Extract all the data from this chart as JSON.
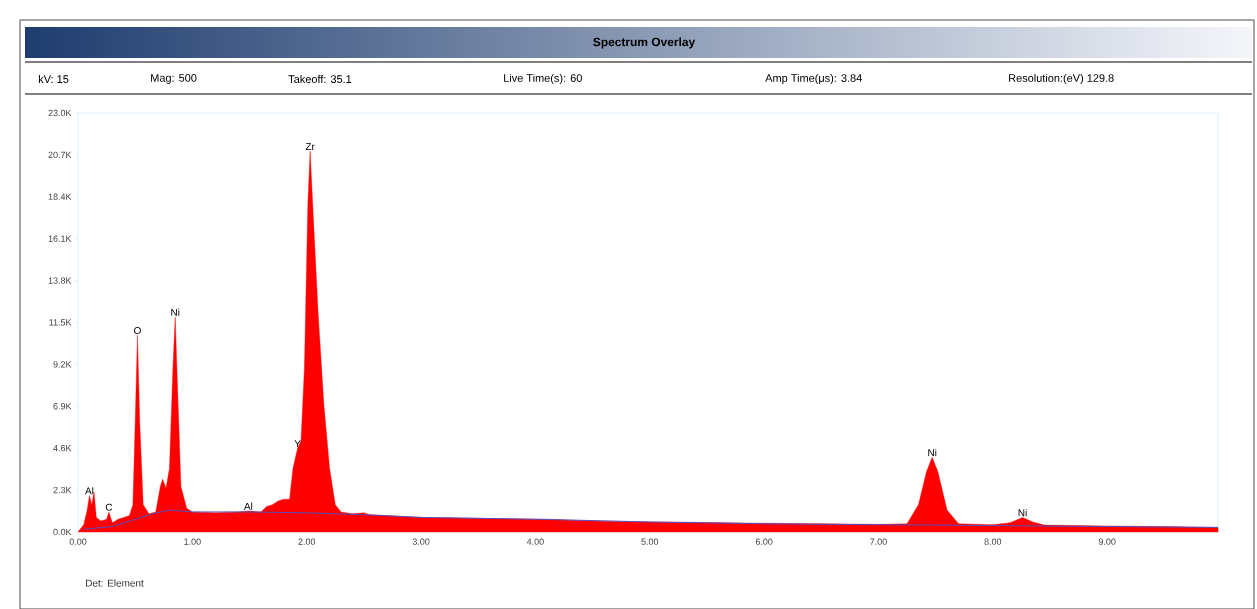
{
  "chart_data": {
    "type": "area",
    "title": "Spectrum Overlay",
    "xlim": [
      0,
      9.97
    ],
    "ylim": [
      0,
      23000
    ],
    "xticks": [
      {
        "value": 0,
        "label": "0.00"
      },
      {
        "value": 1,
        "label": "1.00"
      },
      {
        "value": 2,
        "label": "2.00"
      },
      {
        "value": 3,
        "label": "3.00"
      },
      {
        "value": 4,
        "label": "4.00"
      },
      {
        "value": 5,
        "label": "5.00"
      },
      {
        "value": 6,
        "label": "6.00"
      },
      {
        "value": 7,
        "label": "7.00"
      },
      {
        "value": 8,
        "label": "8.00"
      },
      {
        "value": 9,
        "label": "9.00"
      }
    ],
    "yticks": [
      {
        "value": 0,
        "label": "0.0K"
      },
      {
        "value": 2300,
        "label": "2.3K"
      },
      {
        "value": 4600,
        "label": "4.6K"
      },
      {
        "value": 6900,
        "label": "6.9K"
      },
      {
        "value": 9200,
        "label": "9.2K"
      },
      {
        "value": 11500,
        "label": "11.5K"
      },
      {
        "value": 13800,
        "label": "13.8K"
      },
      {
        "value": 16100,
        "label": "16.1K"
      },
      {
        "value": 18400,
        "label": "18.4K"
      },
      {
        "value": 20700,
        "label": "20.7K"
      },
      {
        "value": 23000,
        "label": "23.0K"
      }
    ],
    "series": [
      {
        "color": "#ff0000",
        "x": [
          0.0,
          0.05,
          0.08,
          0.1,
          0.12,
          0.14,
          0.16,
          0.2,
          0.25,
          0.27,
          0.3,
          0.35,
          0.4,
          0.45,
          0.48,
          0.5,
          0.52,
          0.54,
          0.57,
          0.62,
          0.68,
          0.72,
          0.74,
          0.77,
          0.8,
          0.83,
          0.85,
          0.87,
          0.9,
          0.95,
          1.0,
          1.2,
          1.4,
          1.5,
          1.6,
          1.65,
          1.7,
          1.75,
          1.8,
          1.85,
          1.88,
          1.92,
          1.95,
          1.98,
          2.01,
          2.03,
          2.06,
          2.1,
          2.15,
          2.2,
          2.25,
          2.3,
          2.4,
          2.5,
          2.55,
          2.7,
          3.0,
          3.5,
          4.0,
          4.1,
          4.5,
          5.0,
          5.5,
          6.0,
          6.5,
          7.0,
          7.25,
          7.35,
          7.42,
          7.47,
          7.52,
          7.6,
          7.7,
          8.0,
          8.15,
          8.26,
          8.35,
          8.45,
          9.0,
          9.5,
          9.97
        ],
        "values": [
          0,
          400,
          1200,
          2000,
          1500,
          2200,
          800,
          600,
          700,
          1100,
          500,
          700,
          800,
          900,
          1500,
          6000,
          10800,
          6000,
          1500,
          1000,
          1100,
          2500,
          2900,
          2400,
          3500,
          9000,
          11800,
          8000,
          2500,
          1300,
          1100,
          1050,
          1100,
          1150,
          1100,
          1400,
          1500,
          1700,
          1800,
          1800,
          3500,
          4600,
          5000,
          9000,
          18000,
          20900,
          17000,
          12000,
          7000,
          3500,
          1500,
          1100,
          1000,
          1050,
          950,
          900,
          800,
          750,
          700,
          700,
          600,
          550,
          520,
          480,
          450,
          420,
          450,
          1500,
          3300,
          4100,
          3300,
          1200,
          450,
          400,
          500,
          800,
          550,
          380,
          330,
          300,
          250
        ]
      },
      {
        "type": "line",
        "color": "#5050c0",
        "x": [
          0.05,
          0.3,
          0.5,
          0.65,
          0.8,
          1.0,
          1.5,
          2.0,
          2.5,
          3.0,
          4.0,
          5.0,
          6.0,
          7.0,
          7.5,
          8.0,
          9.0,
          9.97
        ],
        "values": [
          150,
          300,
          700,
          1000,
          1200,
          1100,
          1100,
          1050,
          950,
          800,
          700,
          550,
          450,
          400,
          380,
          350,
          300,
          250
        ]
      }
    ],
    "annotations": [
      "kV: 15",
      "Mag: 500",
      "Takeoff: 35.1",
      "Live Time(s): 60",
      "Amp Time(μs): 3.84",
      "Resolution:(eV) 129.8",
      {
        "text": "Al",
        "x": 0.1,
        "y": 2000
      },
      {
        "text": "C",
        "x": 0.27,
        "y": 1100
      },
      {
        "text": "O",
        "x": 0.52,
        "y": 10800
      },
      {
        "text": "Ni",
        "x": 0.85,
        "y": 11800
      },
      {
        "text": "Al",
        "x": 1.49,
        "y": 1150
      },
      {
        "text": "Y",
        "x": 1.92,
        "y": 4600
      },
      {
        "text": "Zr",
        "x": 2.03,
        "y": 20900
      },
      {
        "text": "Ni",
        "x": 7.47,
        "y": 4100
      },
      {
        "text": "Ni",
        "x": 8.26,
        "y": 800
      },
      "Det: Element"
    ]
  }
}
